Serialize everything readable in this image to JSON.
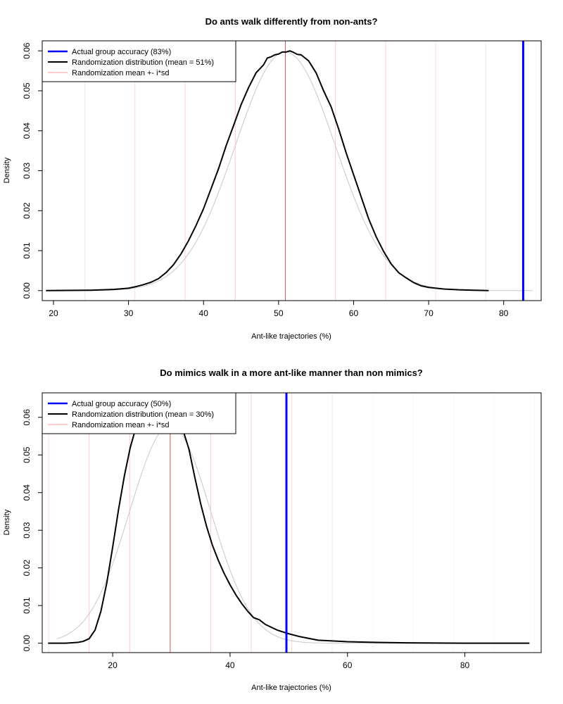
{
  "chart_data": [
    {
      "type": "line",
      "title": "Do ants walk differently from non-ants?",
      "xlabel": "Ant-like trajectories (%)",
      "ylabel": "Density",
      "xlim": [
        18.5,
        85
      ],
      "ylim": [
        -0.0025,
        0.0625
      ],
      "xticks": [
        20,
        30,
        40,
        50,
        60,
        70,
        80
      ],
      "yticks": [
        0.0,
        0.01,
        0.02,
        0.03,
        0.04,
        0.05,
        0.06
      ],
      "ytick_labels": [
        "0.00",
        "0.01",
        "0.02",
        "0.03",
        "0.04",
        "0.05",
        "0.06"
      ],
      "grid": false,
      "legend_position": "top-left",
      "legend": [
        {
          "label": "Actual group accuracy (83%)",
          "color": "#0000ff",
          "kind": "thick"
        },
        {
          "label": "Randomization distribution (mean = 51%)",
          "color": "#000000",
          "kind": "thick"
        },
        {
          "label": "Randomization mean +- i*sd",
          "color": "#ff9999",
          "kind": "thin"
        }
      ],
      "actual_value": 82.6,
      "randomization_mean": 50.9,
      "randomization_sd": 6.68,
      "sd_multiples": [
        -4,
        -3,
        -2,
        -1,
        0,
        1,
        2,
        3,
        4,
        5
      ],
      "series": [
        {
          "name": "Randomization distribution (mean = 51%)",
          "color": "#000000",
          "x": [
            19,
            25,
            28,
            30,
            31,
            32,
            33,
            34,
            35,
            36,
            37,
            38,
            39,
            40,
            41,
            42,
            43,
            44,
            45,
            46,
            47,
            48,
            48.5,
            49,
            49.5,
            50,
            50.5,
            51,
            51.5,
            52,
            52.5,
            53,
            54,
            55,
            56,
            57,
            58,
            59,
            60,
            61,
            62,
            63,
            64,
            65,
            66,
            67,
            68,
            69,
            70,
            72,
            74,
            76,
            78
          ],
          "y": [
            0.0,
            0.0001,
            0.0003,
            0.0006,
            0.001,
            0.0015,
            0.0021,
            0.003,
            0.0045,
            0.0065,
            0.0092,
            0.0125,
            0.0163,
            0.0205,
            0.0255,
            0.0305,
            0.0362,
            0.0413,
            0.0465,
            0.0508,
            0.0545,
            0.0565,
            0.0582,
            0.0585,
            0.059,
            0.0592,
            0.0597,
            0.0597,
            0.06,
            0.0596,
            0.0591,
            0.059,
            0.0575,
            0.0545,
            0.05,
            0.046,
            0.0405,
            0.0345,
            0.029,
            0.0235,
            0.018,
            0.0135,
            0.0098,
            0.0067,
            0.0045,
            0.0032,
            0.002,
            0.0012,
            0.0008,
            0.0004,
            0.0002,
            0.0001,
            0.0
          ]
        }
      ]
    },
    {
      "type": "line",
      "title": "Do mimics walk in a more ant-like manner than non mimics?",
      "xlabel": "Ant-like trajectories (%)",
      "ylabel": "Density",
      "xlim": [
        8,
        93
      ],
      "ylim": [
        -0.0025,
        0.0665
      ],
      "xticks": [
        20,
        40,
        60,
        80
      ],
      "yticks": [
        0.0,
        0.01,
        0.02,
        0.03,
        0.04,
        0.05,
        0.06
      ],
      "ytick_labels": [
        "0.00",
        "0.01",
        "0.02",
        "0.03",
        "0.04",
        "0.05",
        "0.06"
      ],
      "grid": false,
      "legend_position": "top-left",
      "legend": [
        {
          "label": "Actual group accuracy (50%)",
          "color": "#0000ff",
          "kind": "thick"
        },
        {
          "label": "Randomization distribution (mean = 30%)",
          "color": "#000000",
          "kind": "thick"
        },
        {
          "label": "Randomization mean +- i*sd",
          "color": "#ff9999",
          "kind": "thin"
        }
      ],
      "actual_value": 49.6,
      "randomization_mean": 29.8,
      "randomization_sd": 6.9,
      "sd_multiples": [
        -3,
        -2,
        -1,
        0,
        1,
        2,
        3,
        4,
        5,
        6,
        7,
        8,
        9
      ],
      "series": [
        {
          "name": "Randomization distribution (mean = 30%)",
          "color": "#000000",
          "x": [
            9,
            12,
            14,
            15,
            16,
            17,
            18,
            19,
            20,
            21,
            22,
            23,
            24,
            25,
            26,
            27,
            28,
            29,
            30,
            31,
            32,
            33,
            34,
            35,
            36,
            37,
            38,
            39,
            40,
            41,
            42,
            43,
            44,
            45,
            46,
            48,
            50,
            52,
            55,
            60,
            65,
            70,
            80,
            91
          ],
          "y": [
            0.0,
            0.0,
            0.0002,
            0.0005,
            0.0012,
            0.0035,
            0.0085,
            0.016,
            0.0255,
            0.0355,
            0.0445,
            0.052,
            0.0575,
            0.061,
            0.0625,
            0.0628,
            0.0625,
            0.062,
            0.061,
            0.0595,
            0.0565,
            0.0515,
            0.044,
            0.037,
            0.031,
            0.026,
            0.022,
            0.0185,
            0.0155,
            0.0128,
            0.0105,
            0.0085,
            0.0068,
            0.0062,
            0.005,
            0.0035,
            0.0025,
            0.0017,
            0.0008,
            0.0004,
            0.0002,
            0.0001,
            0.0,
            0.0
          ]
        }
      ]
    }
  ],
  "colors": {
    "actual": "#0000ff",
    "distribution": "#000000",
    "sd_lines": "#ff9999",
    "normal_fit": "#c8c8c8"
  }
}
